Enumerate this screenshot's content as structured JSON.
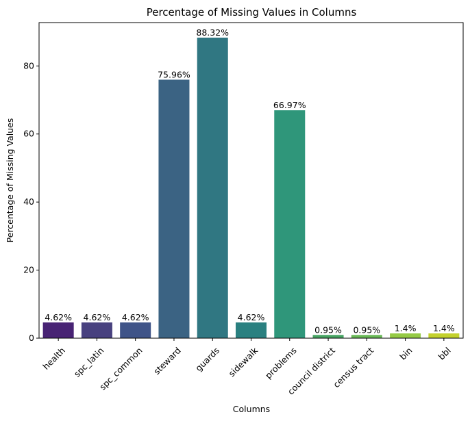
{
  "chart_data": {
    "type": "bar",
    "title": "Percentage of Missing Values in Columns",
    "xlabel": "Columns",
    "ylabel": "Percentage of Missing Values",
    "categories": [
      "health",
      "spc_latin",
      "spc_common",
      "steward",
      "guards",
      "sidewalk",
      "problems",
      "council district",
      "census tract",
      "bin",
      "bbl"
    ],
    "values": [
      4.62,
      4.62,
      4.62,
      75.96,
      88.32,
      4.62,
      66.97,
      0.95,
      0.95,
      1.4,
      1.4
    ],
    "value_labels": [
      "4.62%",
      "4.62%",
      "4.62%",
      "75.96%",
      "88.32%",
      "4.62%",
      "66.97%",
      "0.95%",
      "0.95%",
      "1.4%",
      "1.4%"
    ],
    "colors": [
      "#482374",
      "#48417f",
      "#3f5488",
      "#3b6383",
      "#307782",
      "#2a8080",
      "#2f967a",
      "#47a463",
      "#6ab957",
      "#95ca45",
      "#c3d12d"
    ],
    "ylim": [
      0,
      92.74
    ],
    "yticks": [
      0,
      20,
      40,
      60,
      80
    ],
    "ytick_labels": [
      "0",
      "20",
      "40",
      "60",
      "80"
    ],
    "grid": false,
    "legend": "none"
  }
}
